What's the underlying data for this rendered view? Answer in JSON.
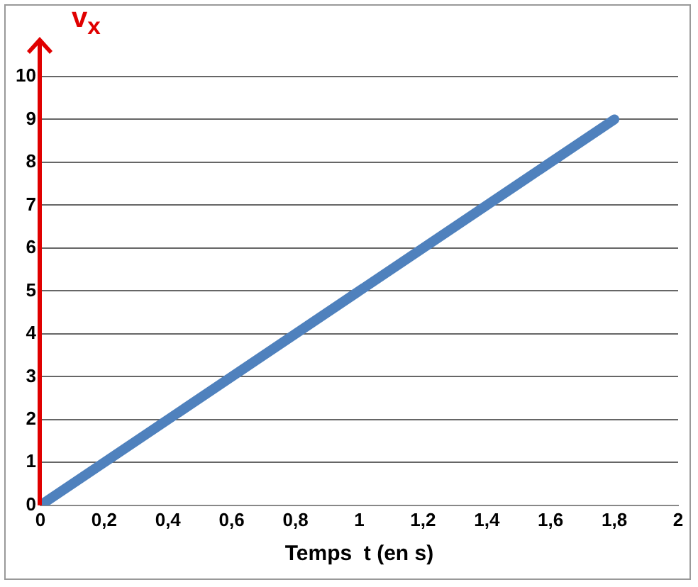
{
  "chart_data": {
    "type": "line",
    "xlabel": "Temps  t (en s)",
    "ylabel": "v$_{x}$",
    "series": [
      {
        "color": "#4f81bd",
        "x": [
          0,
          1.8
        ],
        "values": [
          0,
          9
        ]
      }
    ],
    "xlim": [
      0,
      2
    ],
    "xticks": [
      0,
      {
        "value": 0.2,
        "label": "0,2"
      },
      {
        "value": 0.4,
        "label": "0,4"
      },
      {
        "value": 0.6,
        "label": "0,6"
      },
      {
        "value": 0.8,
        "label": "0,8"
      },
      1,
      {
        "value": 1.2,
        "label": "1,2"
      },
      {
        "value": 1.4,
        "label": "1,4"
      },
      {
        "value": 1.6,
        "label": "1,6"
      },
      {
        "value": 1.8,
        "label": "1,8"
      },
      2
    ],
    "ylim": [
      0,
      10
    ],
    "yticks": [
      0,
      1,
      2,
      3,
      4,
      5,
      6,
      7,
      8,
      9,
      10
    ],
    "grid": "y",
    "legend": false,
    "marker": "none",
    "line_style": "solid"
  }
}
